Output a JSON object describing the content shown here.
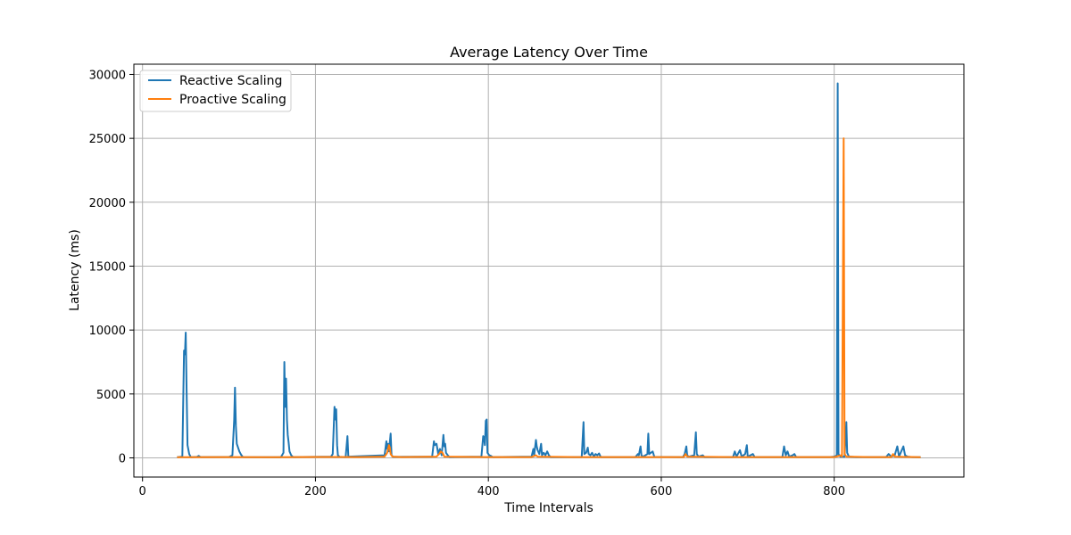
{
  "chart_data": {
    "type": "line",
    "title": "Average Latency Over Time",
    "xlabel": "Time Intervals",
    "ylabel": "Latency (ms)",
    "xlim": [
      -10,
      950
    ],
    "ylim": [
      -1500,
      30800
    ],
    "xticks": [
      0,
      200,
      400,
      600,
      800
    ],
    "yticks": [
      0,
      5000,
      10000,
      15000,
      20000,
      25000,
      30000
    ],
    "grid": true,
    "legend_position": "upper-left",
    "series": [
      {
        "name": "Reactive Scaling",
        "color": "#1f77b4",
        "points": [
          [
            40,
            50
          ],
          [
            46,
            100
          ],
          [
            48,
            8400
          ],
          [
            49,
            8100
          ],
          [
            50,
            9800
          ],
          [
            51,
            5200
          ],
          [
            52,
            1000
          ],
          [
            54,
            300
          ],
          [
            56,
            50
          ],
          [
            63,
            80
          ],
          [
            65,
            150
          ],
          [
            67,
            60
          ],
          [
            100,
            70
          ],
          [
            104,
            200
          ],
          [
            106,
            3000
          ],
          [
            107,
            5500
          ],
          [
            108,
            2500
          ],
          [
            109,
            1100
          ],
          [
            112,
            500
          ],
          [
            114,
            250
          ],
          [
            116,
            60
          ],
          [
            160,
            50
          ],
          [
            163,
            400
          ],
          [
            164,
            7500
          ],
          [
            165,
            4000
          ],
          [
            166,
            6200
          ],
          [
            167,
            3000
          ],
          [
            168,
            1800
          ],
          [
            169,
            1200
          ],
          [
            170,
            500
          ],
          [
            172,
            200
          ],
          [
            174,
            60
          ],
          [
            218,
            100
          ],
          [
            220,
            300
          ],
          [
            222,
            4000
          ],
          [
            223,
            3000
          ],
          [
            224,
            3800
          ],
          [
            225,
            1000
          ],
          [
            226,
            200
          ],
          [
            228,
            80
          ],
          [
            235,
            60
          ],
          [
            237,
            1700
          ],
          [
            238,
            100
          ],
          [
            280,
            200
          ],
          [
            282,
            1300
          ],
          [
            283,
            700
          ],
          [
            284,
            1100
          ],
          [
            285,
            500
          ],
          [
            287,
            1900
          ],
          [
            288,
            200
          ],
          [
            290,
            80
          ],
          [
            335,
            100
          ],
          [
            337,
            1300
          ],
          [
            338,
            1000
          ],
          [
            340,
            1100
          ],
          [
            342,
            300
          ],
          [
            344,
            700
          ],
          [
            346,
            200
          ],
          [
            348,
            1800
          ],
          [
            349,
            900
          ],
          [
            350,
            1100
          ],
          [
            351,
            400
          ],
          [
            353,
            200
          ],
          [
            355,
            60
          ],
          [
            392,
            100
          ],
          [
            394,
            1700
          ],
          [
            395,
            1600
          ],
          [
            396,
            1000
          ],
          [
            397,
            2900
          ],
          [
            398,
            3000
          ],
          [
            399,
            400
          ],
          [
            401,
            200
          ],
          [
            403,
            150
          ],
          [
            405,
            60
          ],
          [
            450,
            100
          ],
          [
            452,
            700
          ],
          [
            453,
            200
          ],
          [
            455,
            1400
          ],
          [
            456,
            900
          ],
          [
            457,
            600
          ],
          [
            459,
            300
          ],
          [
            461,
            1100
          ],
          [
            462,
            200
          ],
          [
            464,
            400
          ],
          [
            466,
            200
          ],
          [
            468,
            500
          ],
          [
            470,
            200
          ],
          [
            472,
            60
          ],
          [
            508,
            60
          ],
          [
            510,
            2800
          ],
          [
            511,
            300
          ],
          [
            513,
            400
          ],
          [
            515,
            800
          ],
          [
            516,
            300
          ],
          [
            518,
            200
          ],
          [
            520,
            400
          ],
          [
            522,
            100
          ],
          [
            524,
            300
          ],
          [
            526,
            200
          ],
          [
            528,
            350
          ],
          [
            530,
            60
          ],
          [
            570,
            60
          ],
          [
            573,
            300
          ],
          [
            574,
            200
          ],
          [
            576,
            900
          ],
          [
            577,
            200
          ],
          [
            579,
            100
          ],
          [
            584,
            300
          ],
          [
            585,
            1900
          ],
          [
            586,
            300
          ],
          [
            590,
            500
          ],
          [
            592,
            80
          ],
          [
            625,
            60
          ],
          [
            627,
            300
          ],
          [
            629,
            900
          ],
          [
            630,
            200
          ],
          [
            632,
            100
          ],
          [
            638,
            200
          ],
          [
            640,
            2000
          ],
          [
            641,
            300
          ],
          [
            643,
            100
          ],
          [
            648,
            200
          ],
          [
            650,
            60
          ],
          [
            683,
            60
          ],
          [
            685,
            500
          ],
          [
            687,
            100
          ],
          [
            691,
            600
          ],
          [
            693,
            100
          ],
          [
            697,
            300
          ],
          [
            699,
            1000
          ],
          [
            700,
            100
          ],
          [
            706,
            300
          ],
          [
            708,
            60
          ],
          [
            740,
            60
          ],
          [
            742,
            900
          ],
          [
            744,
            200
          ],
          [
            746,
            500
          ],
          [
            748,
            100
          ],
          [
            752,
            200
          ],
          [
            754,
            300
          ],
          [
            756,
            60
          ],
          [
            795,
            60
          ],
          [
            800,
            100
          ],
          [
            803,
            200
          ],
          [
            804,
            29300
          ],
          [
            805,
            300
          ],
          [
            807,
            100
          ],
          [
            812,
            100
          ],
          [
            814,
            2800
          ],
          [
            815,
            400
          ],
          [
            817,
            100
          ],
          [
            825,
            60
          ],
          [
            860,
            60
          ],
          [
            863,
            300
          ],
          [
            866,
            100
          ],
          [
            870,
            200
          ],
          [
            873,
            900
          ],
          [
            875,
            100
          ],
          [
            880,
            900
          ],
          [
            882,
            200
          ],
          [
            885,
            100
          ],
          [
            890,
            60
          ],
          [
            900,
            50
          ]
        ]
      },
      {
        "name": "Proactive Scaling",
        "color": "#ff7f0e",
        "points": [
          [
            40,
            50
          ],
          [
            100,
            60
          ],
          [
            150,
            50
          ],
          [
            200,
            70
          ],
          [
            250,
            60
          ],
          [
            280,
            100
          ],
          [
            283,
            400
          ],
          [
            285,
            1000
          ],
          [
            286,
            800
          ],
          [
            287,
            300
          ],
          [
            289,
            100
          ],
          [
            300,
            60
          ],
          [
            340,
            100
          ],
          [
            343,
            300
          ],
          [
            345,
            500
          ],
          [
            347,
            400
          ],
          [
            349,
            100
          ],
          [
            400,
            60
          ],
          [
            450,
            60
          ],
          [
            455,
            200
          ],
          [
            457,
            100
          ],
          [
            500,
            60
          ],
          [
            560,
            60
          ],
          [
            600,
            60
          ],
          [
            626,
            60
          ],
          [
            628,
            300
          ],
          [
            630,
            100
          ],
          [
            680,
            60
          ],
          [
            750,
            60
          ],
          [
            800,
            60
          ],
          [
            808,
            200
          ],
          [
            809,
            100
          ],
          [
            811,
            25000
          ],
          [
            812,
            300
          ],
          [
            814,
            100
          ],
          [
            840,
            60
          ],
          [
            866,
            60
          ],
          [
            868,
            300
          ],
          [
            870,
            100
          ],
          [
            900,
            50
          ]
        ]
      }
    ]
  }
}
